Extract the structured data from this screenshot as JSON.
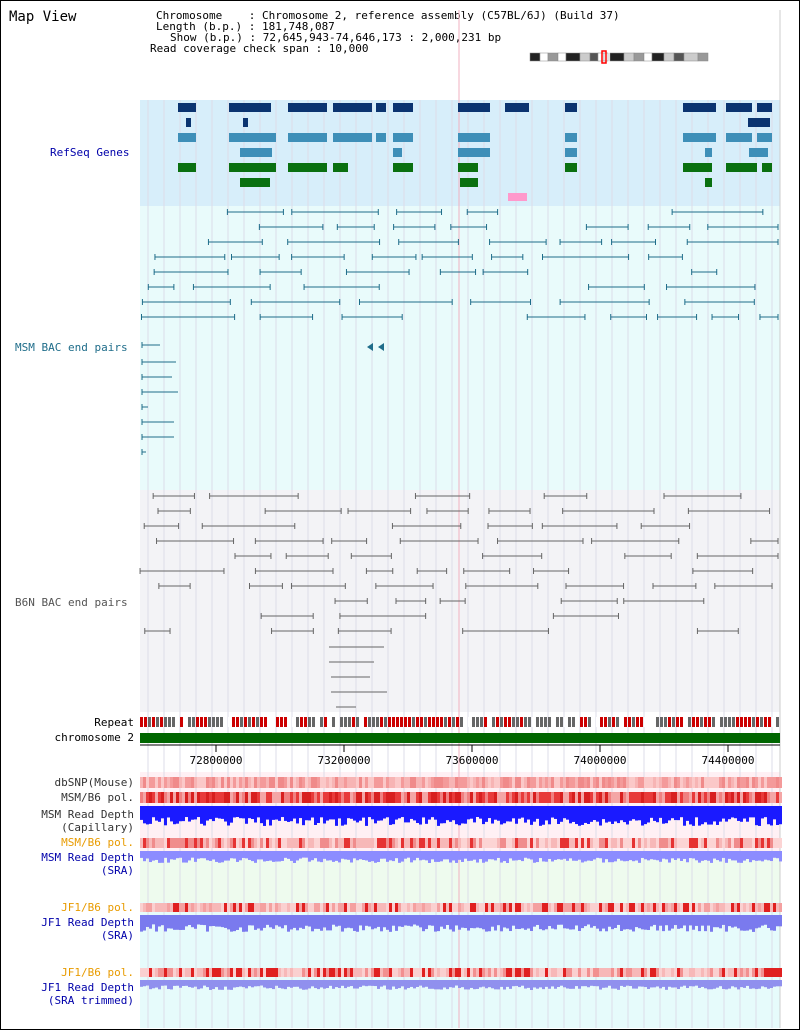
{
  "title": "Map View",
  "info": {
    "chromosome": "Chromosome    : Chromosome 2, reference assembly (C57BL/6J) (Build 37)",
    "length": "Length (b.p.) : 181,748,087",
    "show": "Show (b.p.) : 72,645,943-74,646,173 : 2,000,231 bp",
    "coverage": "Read coverage check span : 10,000"
  },
  "tracks": {
    "refseq": "RefSeq Genes",
    "msm_bac": "MSM BAC end pairs",
    "b6n_bac": "B6N BAC end pairs",
    "repeat": "Repeat",
    "chromosome": "chromosome 2",
    "dbsnp": "dbSNP(Mouse)",
    "msm_b6_pol": "MSM/B6 pol.",
    "msm_read_depth_cap_1": "MSM Read Depth",
    "msm_read_depth_cap_2": "(Capillary)",
    "msm_b6_pol_2": "MSM/B6 pol.",
    "msm_read_depth_sra_1": "MSM Read Depth",
    "msm_read_depth_sra_2": "(SRA)",
    "jf1_b6_pol": "JF1/B6 pol.",
    "jf1_read_depth_sra_1": "JF1 Read Depth",
    "jf1_read_depth_sra_2": "(SRA)",
    "jf1_b6_pol_2": "JF1/B6 pol.",
    "jf1_read_depth_trim_1": "JF1 Read Depth",
    "jf1_read_depth_trim_2": "(SRA trimmed)"
  },
  "axis": {
    "ticks": [
      "72800000",
      "73200000",
      "73600000",
      "74000000",
      "74400000"
    ]
  },
  "colors": {
    "refseq_bg": "#d7eefa",
    "msm_bg": "#e9fbfb",
    "b6n_bg": "#f3f3f6",
    "gene_dark": "#0b3470",
    "gene_mid": "#3e8fb8",
    "gene_green": "#0a7010",
    "bac_msm": "#1f6d8a",
    "bac_b6n": "#666666",
    "chromosome_bar": "#006600",
    "label_blue": "#0000aa",
    "label_teal": "#1f6d8a",
    "label_orange": "#e89b00"
  }
}
